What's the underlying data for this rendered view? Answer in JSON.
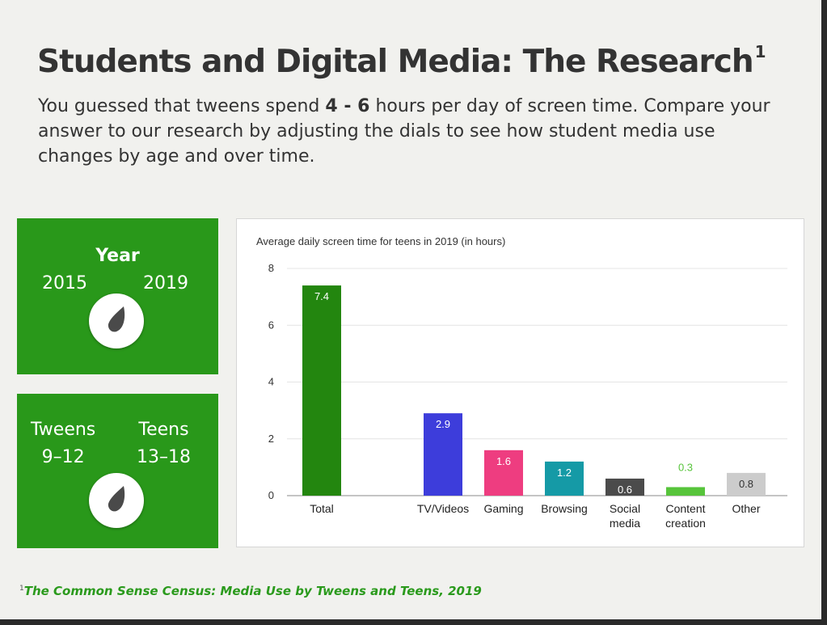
{
  "title": "Students and Digital Media: The Research",
  "title_footnote_marker": "1",
  "intro": {
    "before": "You guessed that tweens spend ",
    "bold": "4 - 6",
    "after": " hours per day of screen time. Compare your answer to our research by adjusting the dials to see how student media use changes by age and over time."
  },
  "year_dial": {
    "heading": "Year",
    "left_label": "2015",
    "right_label": "2019",
    "selected": "2019"
  },
  "age_dial": {
    "left_label_line1": "Tweens",
    "left_label_line2": "9–12",
    "right_label_line1": "Teens",
    "right_label_line2": "13–18",
    "selected": "Teens"
  },
  "colors": {
    "panel_green": "#29981a",
    "footnote_green": "#2a9a1c"
  },
  "chart_data": {
    "type": "bar",
    "title": "Average daily screen time for teens in 2019 (in hours)",
    "xlabel": "",
    "ylabel": "",
    "ylim": [
      0,
      8
    ],
    "yticks": [
      "0",
      "2",
      "4",
      "6",
      "8"
    ],
    "grid": true,
    "categories": [
      {
        "label": [
          "Total"
        ],
        "value": 7.4,
        "value_label": "7.4",
        "color": "#23860f",
        "label_color": "#ffffff",
        "label_inside": true
      },
      {
        "label": [
          "TV/Videos"
        ],
        "value": 2.9,
        "value_label": "2.9",
        "color": "#3d3ddb",
        "label_color": "#ffffff",
        "label_inside": true
      },
      {
        "label": [
          "Gaming"
        ],
        "value": 1.6,
        "value_label": "1.6",
        "color": "#ee3d80",
        "label_color": "#ffffff",
        "label_inside": true
      },
      {
        "label": [
          "Browsing"
        ],
        "value": 1.2,
        "value_label": "1.2",
        "color": "#159aa6",
        "label_color": "#ffffff",
        "label_inside": true
      },
      {
        "label": [
          "Social",
          "media"
        ],
        "value": 0.6,
        "value_label": "0.6",
        "color": "#4b4b4b",
        "label_color": "#ffffff",
        "label_inside": true
      },
      {
        "label": [
          "Content",
          "creation"
        ],
        "value": 0.3,
        "value_label": "0.3",
        "color": "#57c43b",
        "label_color": "#57c43b",
        "label_inside": false
      },
      {
        "label": [
          "Other"
        ],
        "value": 0.8,
        "value_label": "0.8",
        "color": "#cccccc",
        "label_color": "#333333",
        "label_inside": true
      }
    ]
  },
  "footnote": {
    "marker": "1",
    "text": "The Common Sense Census: Media Use by Tweens and Teens, 2019"
  }
}
